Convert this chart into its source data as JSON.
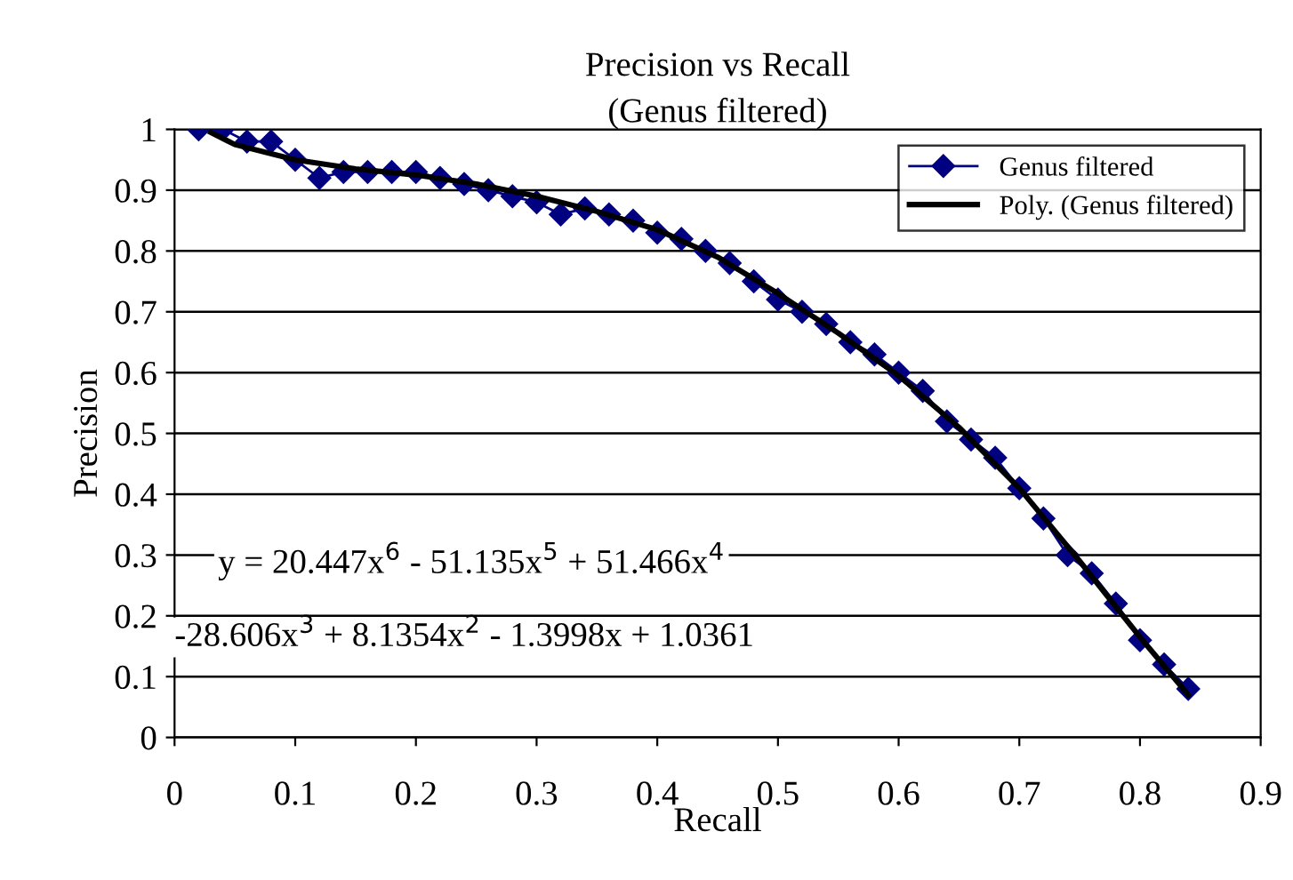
{
  "chart_data": {
    "type": "line",
    "title": "Precision vs Recall",
    "subtitle": "(Genus filtered)",
    "xlabel": "Recall",
    "ylabel": "Precision",
    "xlim": [
      0,
      0.9
    ],
    "xticks": [
      0,
      0.1,
      0.2,
      0.3,
      0.4,
      0.5,
      0.6,
      0.7,
      0.8,
      0.9
    ],
    "ylim": [
      0,
      1
    ],
    "yticks": [
      0,
      0.1,
      0.2,
      0.3,
      0.4,
      0.5,
      0.6,
      0.7,
      0.8,
      0.9,
      1
    ],
    "grid": "y",
    "legend": "top right",
    "annotations": [
      "y = 20.447x$^{6}$ - 51.135x$^{5}$ + 51.466x$^{4}$",
      "-28.606x$^{3}$ + 8.1354x$^{2}$ - 1.3998x + 1.0361"
    ],
    "series": [
      {
        "name": "Genus filtered",
        "color": "#000080",
        "marker": "diamond",
        "line_style": "solid",
        "x": [
          0.02,
          0.04,
          0.06,
          0.08,
          0.1,
          0.12,
          0.14,
          0.16,
          0.18,
          0.2,
          0.22,
          0.24,
          0.26,
          0.28,
          0.3,
          0.32,
          0.34,
          0.36,
          0.38,
          0.4,
          0.42,
          0.44,
          0.46,
          0.48,
          0.5,
          0.52,
          0.54,
          0.56,
          0.58,
          0.6,
          0.62,
          0.64,
          0.66,
          0.68,
          0.7,
          0.72,
          0.74,
          0.76,
          0.78,
          0.8,
          0.82,
          0.84
        ],
        "values": [
          1.0,
          1.0,
          0.98,
          0.98,
          0.95,
          0.92,
          0.93,
          0.93,
          0.93,
          0.93,
          0.92,
          0.91,
          0.9,
          0.89,
          0.88,
          0.86,
          0.87,
          0.86,
          0.85,
          0.83,
          0.82,
          0.8,
          0.78,
          0.75,
          0.72,
          0.7,
          0.68,
          0.65,
          0.63,
          0.6,
          0.57,
          0.52,
          0.49,
          0.46,
          0.41,
          0.36,
          0.3,
          0.27,
          0.22,
          0.16,
          0.12,
          0.08
        ]
      },
      {
        "name": "Poly. (Genus filtered)",
        "color": "#000000",
        "marker": "none",
        "line_style": "solid",
        "x": [
          0.03,
          0.05,
          0.1,
          0.15,
          0.2,
          0.25,
          0.3,
          0.35,
          0.4,
          0.45,
          0.5,
          0.55,
          0.6,
          0.65,
          0.7,
          0.75,
          0.8,
          0.84
        ],
        "values": [
          0.995,
          0.975,
          0.95,
          0.935,
          0.925,
          0.91,
          0.89,
          0.865,
          0.835,
          0.79,
          0.73,
          0.665,
          0.595,
          0.51,
          0.41,
          0.29,
          0.165,
          0.07
        ]
      }
    ]
  }
}
